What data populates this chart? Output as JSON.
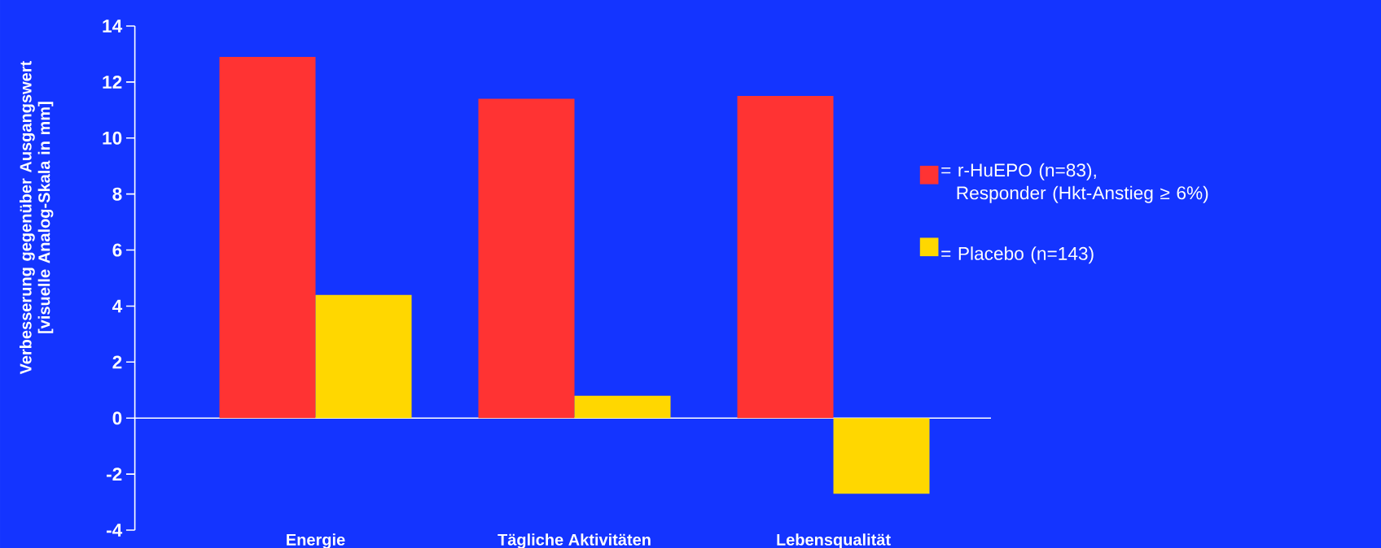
{
  "chart_data": {
    "type": "bar",
    "ylabel": "Verbesserung gegenüber Ausgangswert [visuelle Analog-Skala in mm]",
    "categories": [
      "Energie",
      "Tägliche Aktivitäten",
      "Lebensqualität"
    ],
    "series": [
      {
        "name": "= r-HuEPO (n=83), Responder (Hkt-Anstieg ≥ 6%)",
        "color": "#ff3333",
        "values": [
          12.9,
          11.4,
          11.5
        ]
      },
      {
        "name": "= Placebo (n=143)",
        "color": "#ffd700",
        "values": [
          4.4,
          0.8,
          -2.7
        ]
      }
    ],
    "ylim": [
      -4,
      14
    ],
    "yticks": [
      -4,
      -2,
      0,
      2,
      4,
      6,
      8,
      10,
      12,
      14
    ],
    "legend": "right"
  }
}
